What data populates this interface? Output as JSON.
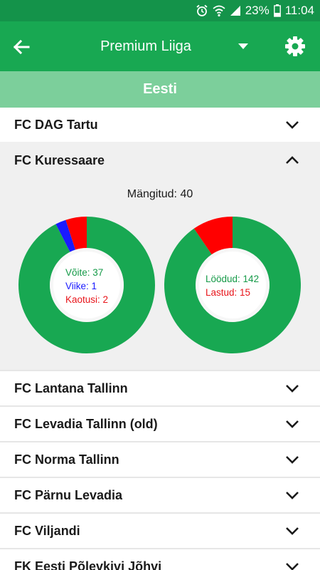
{
  "status_bar": {
    "battery": "23%",
    "time": "11:04"
  },
  "app_bar": {
    "title": "Premium Liiga"
  },
  "section": {
    "title": "Eesti"
  },
  "teams_above": [
    {
      "name": "FC DAG Tartu"
    }
  ],
  "expanded_team": {
    "name": "FC Kuressaare",
    "played_label": "Mängitud: 40",
    "results": {
      "wins_label": "Võite: 37",
      "draws_label": "Viike: 1",
      "losses_label": "Kaotusi: 2",
      "wins": 37,
      "draws": 1,
      "losses": 2
    },
    "goals": {
      "scored_label": "Löödud: 142",
      "conceded_label": "Lastud: 15",
      "scored": 142,
      "conceded": 15
    }
  },
  "teams_below": [
    {
      "name": "FC Lantana Tallinn"
    },
    {
      "name": "FC Levadia Tallinn (old)"
    },
    {
      "name": "FC Norma Tallinn"
    },
    {
      "name": "FC Pärnu Levadia"
    },
    {
      "name": "FC Viljandi"
    },
    {
      "name": "FK Eesti Põlevkivi Jõhvi"
    }
  ],
  "colors": {
    "primary": "#18a852",
    "primary_dark": "#14934a",
    "section": "#7ccf9b",
    "win": "#18a852",
    "draw": "#1a1aff",
    "loss": "#ff0000"
  }
}
